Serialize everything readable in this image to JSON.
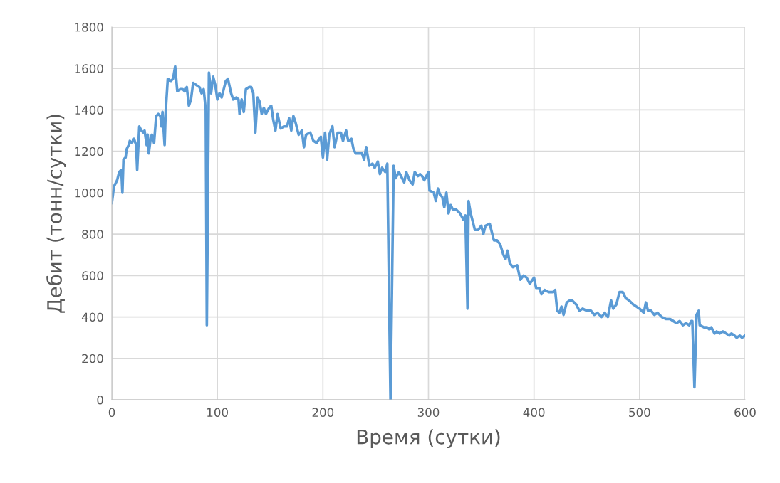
{
  "chart_data": {
    "type": "line",
    "xlabel": "Время (сутки)",
    "ylabel": "Дебит (тонн/сутки)",
    "xlim": [
      0,
      600
    ],
    "xticks": [
      0,
      100,
      200,
      300,
      400,
      500,
      600
    ],
    "ylim": [
      0,
      1800
    ],
    "yticks": [
      0,
      200,
      400,
      600,
      800,
      1000,
      1200,
      1400,
      1600,
      1800
    ],
    "grid": true,
    "marker": "none",
    "line_style": "solid",
    "series": [
      {
        "color": "#5b9bd5",
        "x": [
          0,
          2,
          5,
          7,
          9,
          10,
          11,
          13,
          14,
          16,
          17,
          19,
          21,
          23,
          24,
          26,
          28,
          30,
          31,
          33,
          34,
          35,
          37,
          38,
          40,
          42,
          44,
          46,
          47,
          48,
          50,
          51,
          53,
          56,
          58,
          60,
          62,
          65,
          67,
          69,
          71,
          73,
          75,
          77,
          80,
          83,
          85,
          87,
          89,
          90,
          92,
          94,
          96,
          98,
          100,
          102,
          104,
          106,
          108,
          110,
          113,
          115,
          118,
          120,
          121,
          123,
          125,
          127,
          130,
          132,
          134,
          136,
          138,
          140,
          142,
          144,
          146,
          149,
          151,
          153,
          155,
          157,
          160,
          163,
          166,
          168,
          170,
          172,
          174,
          177,
          180,
          182,
          184,
          188,
          191,
          194,
          198,
          200,
          202,
          204,
          206,
          209,
          211,
          214,
          217,
          219,
          222,
          224,
          227,
          229,
          231,
          234,
          237,
          239,
          241,
          244,
          247,
          249,
          252,
          254,
          256,
          259,
          261,
          264,
          267,
          269,
          272,
          274,
          277,
          279,
          282,
          285,
          287,
          290,
          292,
          294,
          296,
          300,
          301,
          305,
          307,
          309,
          311,
          313,
          315,
          317,
          319,
          321,
          323,
          326,
          330,
          333,
          335,
          337,
          338,
          340,
          344,
          347,
          350,
          352,
          354,
          358,
          362,
          365,
          368,
          371,
          373,
          375,
          377,
          380,
          384,
          387,
          390,
          393,
          396,
          400,
          402,
          405,
          407,
          410,
          414,
          418,
          420,
          422,
          424,
          426,
          428,
          431,
          434,
          436,
          440,
          443,
          446,
          450,
          454,
          457,
          460,
          464,
          467,
          470,
          473,
          475,
          478,
          481,
          484,
          487,
          490,
          494,
          497,
          500,
          504,
          506,
          508,
          511,
          514,
          517,
          521,
          525,
          529,
          532,
          535,
          538,
          541,
          544,
          547,
          549,
          550,
          552,
          554,
          556,
          557,
          561,
          564,
          566,
          568,
          571,
          573,
          576,
          579,
          582,
          585,
          587,
          590,
          592,
          595,
          597,
          600
        ],
        "values": [
          950,
          1030,
          1060,
          1100,
          1110,
          1000,
          1160,
          1170,
          1210,
          1230,
          1250,
          1240,
          1260,
          1230,
          1110,
          1320,
          1300,
          1290,
          1300,
          1230,
          1280,
          1190,
          1270,
          1280,
          1240,
          1370,
          1380,
          1370,
          1320,
          1390,
          1230,
          1390,
          1550,
          1540,
          1550,
          1610,
          1490,
          1500,
          1500,
          1490,
          1510,
          1420,
          1450,
          1530,
          1520,
          1510,
          1480,
          1500,
          1400,
          360,
          1580,
          1480,
          1560,
          1520,
          1450,
          1480,
          1460,
          1500,
          1540,
          1550,
          1480,
          1450,
          1460,
          1450,
          1380,
          1450,
          1390,
          1500,
          1510,
          1510,
          1480,
          1290,
          1460,
          1440,
          1380,
          1410,
          1380,
          1410,
          1420,
          1350,
          1300,
          1380,
          1310,
          1320,
          1320,
          1360,
          1300,
          1370,
          1340,
          1280,
          1300,
          1220,
          1280,
          1290,
          1250,
          1240,
          1270,
          1170,
          1290,
          1160,
          1280,
          1320,
          1220,
          1290,
          1290,
          1250,
          1300,
          1250,
          1260,
          1210,
          1190,
          1190,
          1190,
          1160,
          1220,
          1130,
          1140,
          1120,
          1150,
          1090,
          1120,
          1100,
          1140,
          0,
          1130,
          1070,
          1100,
          1080,
          1050,
          1100,
          1060,
          1040,
          1100,
          1080,
          1090,
          1080,
          1060,
          1100,
          1010,
          1000,
          960,
          1020,
          990,
          980,
          930,
          1000,
          900,
          940,
          920,
          920,
          900,
          870,
          890,
          440,
          960,
          900,
          820,
          820,
          840,
          800,
          840,
          850,
          770,
          770,
          750,
          700,
          680,
          720,
          660,
          640,
          650,
          580,
          600,
          590,
          560,
          590,
          540,
          540,
          510,
          530,
          520,
          520,
          530,
          430,
          420,
          450,
          410,
          470,
          480,
          480,
          460,
          430,
          440,
          430,
          430,
          410,
          420,
          400,
          420,
          400,
          480,
          440,
          460,
          520,
          520,
          490,
          480,
          460,
          450,
          440,
          420,
          470,
          430,
          430,
          410,
          420,
          400,
          390,
          390,
          380,
          370,
          380,
          360,
          370,
          360,
          380,
          380,
          60,
          410,
          430,
          360,
          350,
          350,
          340,
          350,
          320,
          330,
          320,
          330,
          320,
          310,
          320,
          310,
          300,
          310,
          300,
          310
        ]
      }
    ]
  }
}
